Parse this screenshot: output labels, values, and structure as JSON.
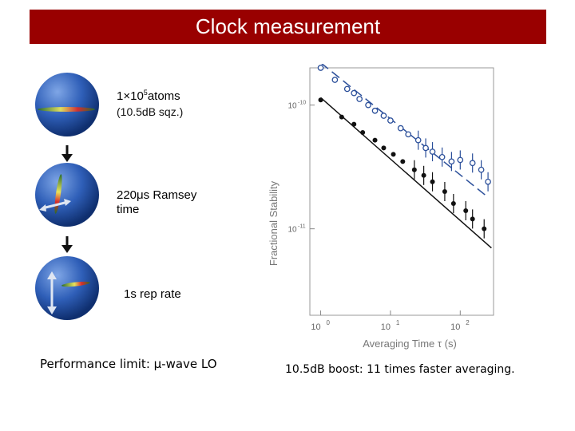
{
  "header": {
    "title": "Clock measurement"
  },
  "steps": [
    {
      "label_html": "1&times;10<sup>5</sup>atoms",
      "detail": "(10.5dB sqz.)"
    },
    {
      "label_html": "220&mu;s Ramsey<br>time"
    },
    {
      "label_html": "1s rep rate"
    }
  ],
  "captions": {
    "left": "Performance limit: μ-wave LO",
    "right": "10.5dB boost: 11 times faster averaging."
  },
  "chart_data": {
    "type": "scatter",
    "ylabel": "Fractional Stability",
    "xlabel": "Averaging Time τ (s)",
    "x_scale": "log",
    "y_scale": "log",
    "xlim": [
      0.7,
      300
    ],
    "ylim": [
      2e-12,
      2e-10
    ],
    "x_ticks": [
      {
        "value": 1,
        "base": "10",
        "exp": "0"
      },
      {
        "value": 10,
        "base": "10",
        "exp": "1"
      },
      {
        "value": 100,
        "base": "10",
        "exp": "2"
      }
    ],
    "y_ticks": [
      {
        "value": 1e-10,
        "base": "10",
        "exp": "-10"
      },
      {
        "value": 1e-11,
        "base": "10",
        "exp": "-11"
      }
    ],
    "series": [
      {
        "marker": "open-circle",
        "color": "#2b4f9a",
        "points": [
          [
            1.0,
            2e-10
          ],
          [
            1.6,
            1.6e-10
          ],
          [
            2.4,
            1.35e-10
          ],
          [
            3.0,
            1.25e-10
          ],
          [
            3.6,
            1.12e-10
          ],
          [
            4.8,
            1e-10
          ],
          [
            6.0,
            9e-11
          ],
          [
            8.0,
            8.2e-11
          ],
          [
            10,
            7.5e-11
          ],
          [
            14,
            6.5e-11
          ],
          [
            18,
            5.8e-11
          ],
          [
            25,
            5.2e-11
          ],
          [
            32,
            4.5e-11
          ],
          [
            40,
            4.2e-11
          ],
          [
            55,
            3.8e-11
          ],
          [
            75,
            3.5e-11
          ],
          [
            100,
            3.6e-11
          ],
          [
            150,
            3.4e-11
          ],
          [
            200,
            3e-11
          ],
          [
            250,
            2.4e-11
          ]
        ],
        "fit": [
          [
            1.0,
            2.2e-10
          ],
          [
            250,
            1.8e-11
          ]
        ]
      },
      {
        "marker": "filled-circle",
        "color": "#111111",
        "points": [
          [
            1.0,
            1.1e-10
          ],
          [
            2.0,
            8e-11
          ],
          [
            3.0,
            7e-11
          ],
          [
            4.0,
            6e-11
          ],
          [
            6.0,
            5.2e-11
          ],
          [
            8.0,
            4.5e-11
          ],
          [
            11,
            4e-11
          ],
          [
            15,
            3.5e-11
          ],
          [
            22,
            3e-11
          ],
          [
            30,
            2.7e-11
          ],
          [
            40,
            2.4e-11
          ],
          [
            60,
            2e-11
          ],
          [
            80,
            1.6e-11
          ],
          [
            120,
            1.4e-11
          ],
          [
            150,
            1.2e-11
          ],
          [
            220,
            1e-11
          ]
        ],
        "fit": [
          [
            1.0,
            1.15e-10
          ],
          [
            280,
            7e-12
          ]
        ]
      }
    ]
  }
}
